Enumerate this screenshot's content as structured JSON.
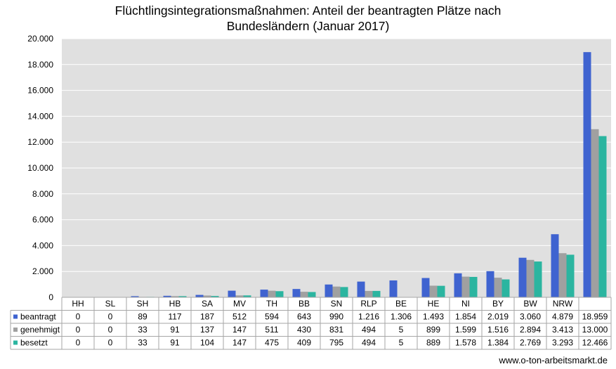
{
  "chart_data": {
    "type": "bar",
    "title_line1": "Flüchtlingsintegrationsmaßnahmen: Anteil der beantragten Plätze nach",
    "title_line2": "Bundesländern (Januar 2017)",
    "categories": [
      "HH",
      "SL",
      "SH",
      "HB",
      "SA",
      "MV",
      "TH",
      "BB",
      "SN",
      "RLP",
      "BE",
      "HE",
      "NI",
      "BY",
      "BW",
      "NRW",
      ""
    ],
    "series": [
      {
        "name": "beantragt",
        "color": "#3f63d0",
        "values": [
          0,
          0,
          89,
          117,
          187,
          512,
          594,
          643,
          990,
          1216,
          1306,
          1493,
          1854,
          2019,
          3060,
          4879,
          18959
        ],
        "labels": [
          "0",
          "0",
          "89",
          "117",
          "187",
          "512",
          "594",
          "643",
          "990",
          "1.216",
          "1.306",
          "1.493",
          "1.854",
          "2.019",
          "3.060",
          "4.879",
          "18.959"
        ]
      },
      {
        "name": "genehmigt",
        "color": "#a0a0a0",
        "values": [
          0,
          0,
          33,
          91,
          137,
          147,
          511,
          430,
          831,
          494,
          5,
          899,
          1599,
          1516,
          2894,
          3413,
          13000
        ],
        "labels": [
          "0",
          "0",
          "33",
          "91",
          "137",
          "147",
          "511",
          "430",
          "831",
          "494",
          "5",
          "899",
          "1.599",
          "1.516",
          "2.894",
          "3.413",
          "13.000"
        ]
      },
      {
        "name": "besetzt",
        "color": "#2bb5a0",
        "values": [
          0,
          0,
          33,
          91,
          104,
          147,
          475,
          409,
          795,
          494,
          5,
          889,
          1578,
          1384,
          2769,
          3293,
          12466
        ],
        "labels": [
          "0",
          "0",
          "33",
          "91",
          "104",
          "147",
          "475",
          "409",
          "795",
          "494",
          "5",
          "889",
          "1.578",
          "1.384",
          "2.769",
          "3.293",
          "12.466"
        ]
      }
    ],
    "ylim": [
      0,
      20000
    ],
    "yticks": [
      0,
      2000,
      4000,
      6000,
      8000,
      10000,
      12000,
      14000,
      16000,
      18000,
      20000
    ],
    "ytick_labels": [
      "0",
      "2.000",
      "4.000",
      "6.000",
      "8.000",
      "10.000",
      "12.000",
      "14.000",
      "16.000",
      "18.000",
      "20.000"
    ],
    "grid": true,
    "legend": "data-table"
  },
  "source": "www.o-ton-arbeitsmarkt.de"
}
